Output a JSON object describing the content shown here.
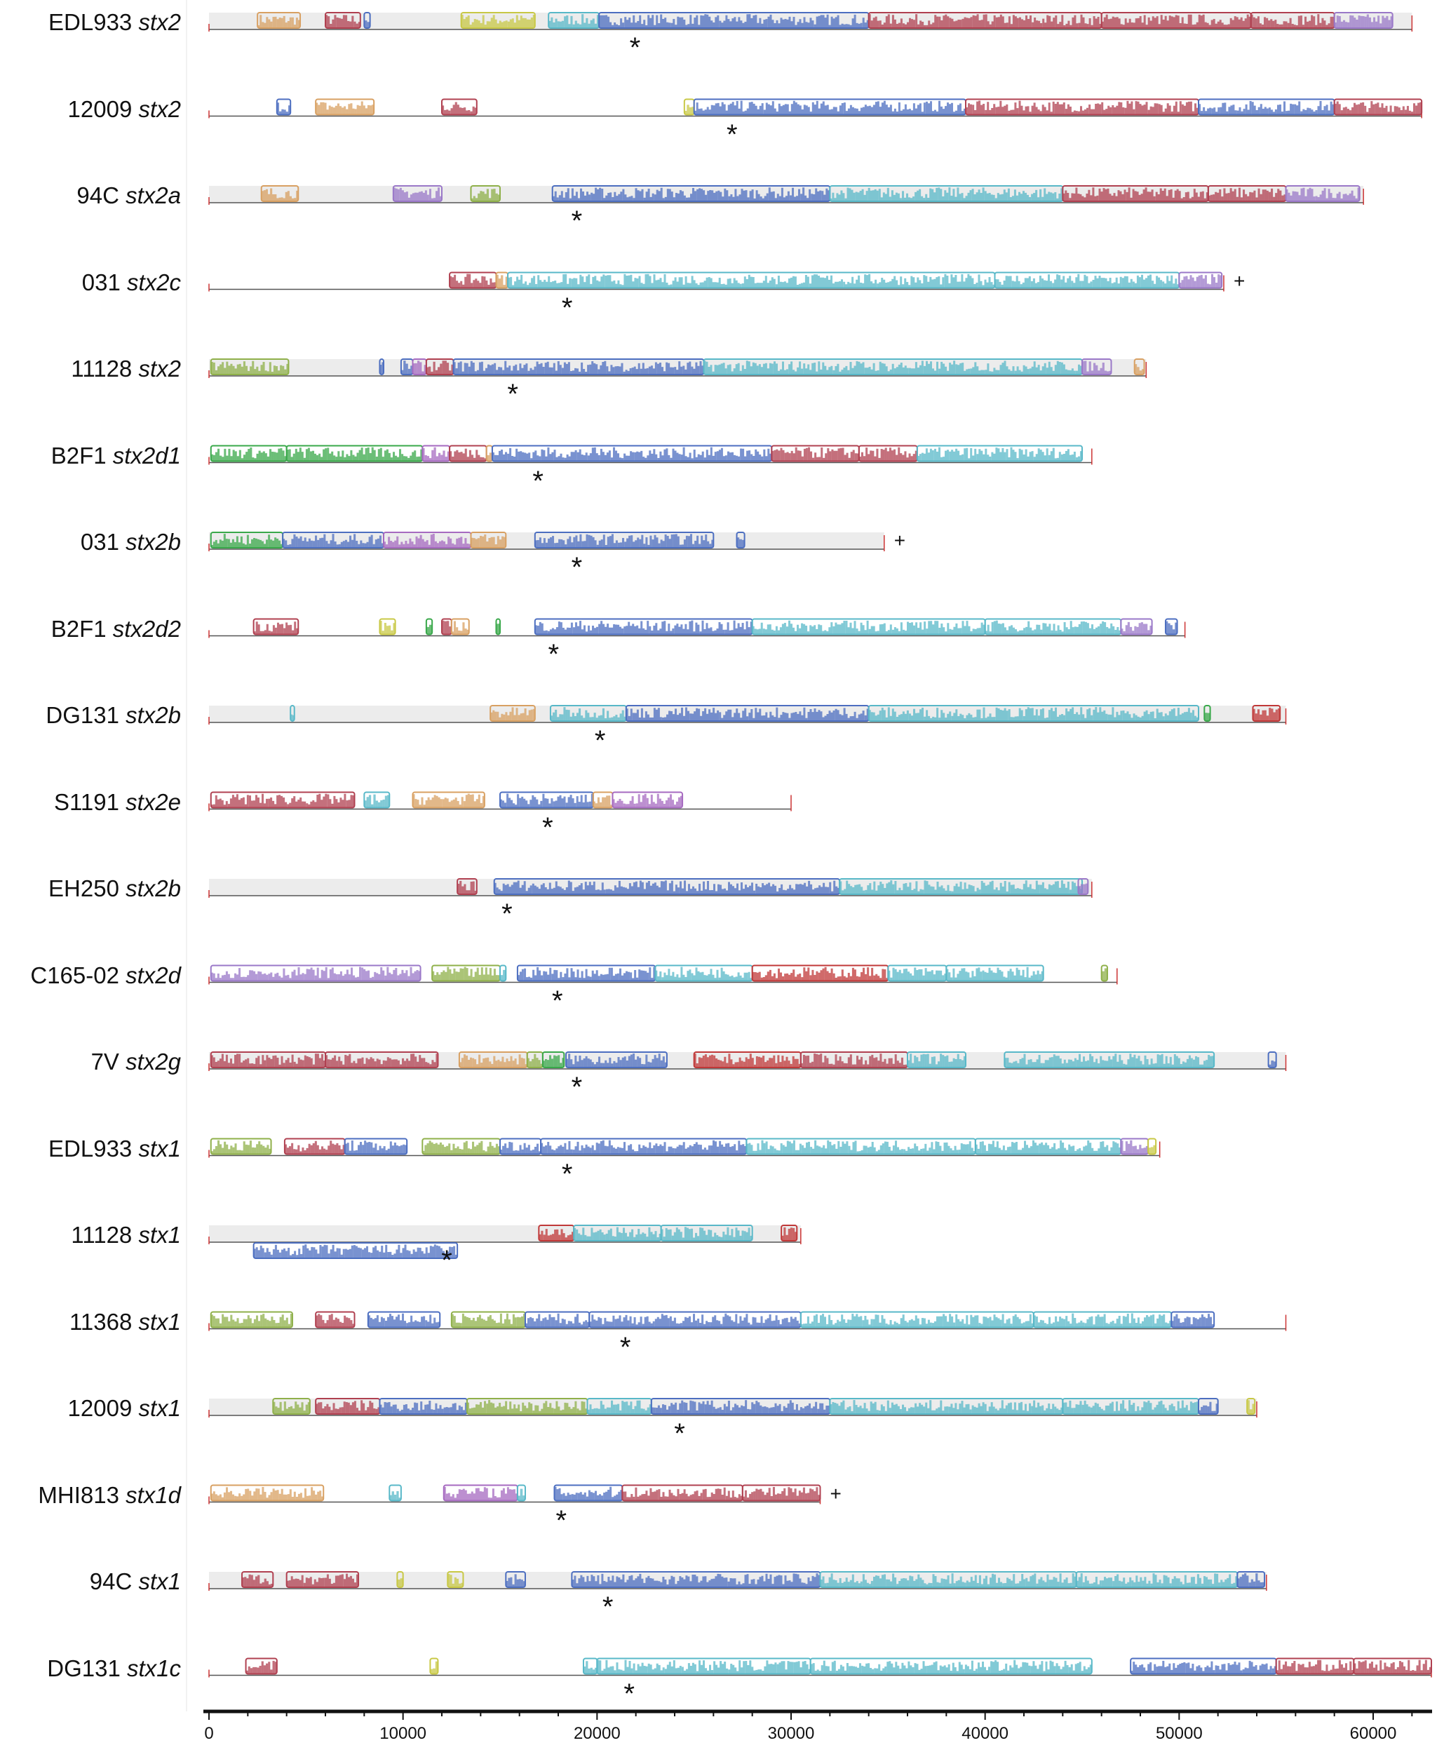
{
  "palette": [
    "#b04050",
    "#39a84a",
    "#9a78c8",
    "#88bde0",
    "#c8c845",
    "#d8a062",
    "#4c6ec0",
    "#e48a98",
    "#8fb04a",
    "#c03838",
    "#58b8c8",
    "#a66ac0"
  ],
  "axis": {
    "min": 0,
    "max": 63000,
    "ticks": [
      "0",
      "10000",
      "20000",
      "30000",
      "40000",
      "50000",
      "60000"
    ]
  },
  "rows": [
    {
      "strain": "EDL933",
      "gene": "stx2",
      "length": 62000,
      "shade": true,
      "star": 22000,
      "mark": "",
      "blocks": [
        {
          "s": 2500,
          "e": 4700,
          "c": 5
        },
        {
          "s": 6000,
          "e": 7800,
          "c": 0
        },
        {
          "s": 8000,
          "e": 8300,
          "c": 6
        },
        {
          "s": 13000,
          "e": 16800,
          "c": 4
        },
        {
          "s": 17500,
          "e": 20100,
          "c": 10
        },
        {
          "s": 20100,
          "e": 34000,
          "c": 6
        },
        {
          "s": 34000,
          "e": 46000,
          "c": 0
        },
        {
          "s": 46000,
          "e": 53700,
          "c": 0
        },
        {
          "s": 53700,
          "e": 58000,
          "c": 0
        },
        {
          "s": 58000,
          "e": 61000,
          "c": 2
        }
      ]
    },
    {
      "strain": "12009",
      "gene": "stx2",
      "length": 62500,
      "shade": false,
      "star": 27000,
      "mark": "",
      "blocks": [
        {
          "s": 3500,
          "e": 4200,
          "c": 6
        },
        {
          "s": 5500,
          "e": 8500,
          "c": 5
        },
        {
          "s": 12000,
          "e": 13800,
          "c": 0
        },
        {
          "s": 24500,
          "e": 25000,
          "c": 4
        },
        {
          "s": 25000,
          "e": 39000,
          "c": 6
        },
        {
          "s": 39000,
          "e": 51000,
          "c": 0
        },
        {
          "s": 51000,
          "e": 58000,
          "c": 6
        },
        {
          "s": 58000,
          "e": 62500,
          "c": 0
        }
      ]
    },
    {
      "strain": "94C",
      "gene": "stx2a",
      "length": 59500,
      "shade": true,
      "star": 19000,
      "mark": "",
      "blocks": [
        {
          "s": 2700,
          "e": 4600,
          "c": 5
        },
        {
          "s": 9500,
          "e": 12000,
          "c": 2
        },
        {
          "s": 13500,
          "e": 15000,
          "c": 8
        },
        {
          "s": 17700,
          "e": 32000,
          "c": 6
        },
        {
          "s": 32000,
          "e": 44000,
          "c": 10
        },
        {
          "s": 44000,
          "e": 51500,
          "c": 0
        },
        {
          "s": 51500,
          "e": 55500,
          "c": 0
        },
        {
          "s": 55500,
          "e": 59300,
          "c": 2
        }
      ]
    },
    {
      "strain": "031",
      "gene": "stx2c",
      "length": 52300,
      "shade": false,
      "star": 18500,
      "mark": "+",
      "blocks": [
        {
          "s": 12400,
          "e": 14800,
          "c": 0
        },
        {
          "s": 14800,
          "e": 15400,
          "c": 5
        },
        {
          "s": 15400,
          "e": 40500,
          "c": 10
        },
        {
          "s": 40500,
          "e": 50000,
          "c": 10
        },
        {
          "s": 50000,
          "e": 52200,
          "c": 2
        }
      ]
    },
    {
      "strain": "11128",
      "gene": "stx2",
      "length": 48300,
      "shade": true,
      "star": 15700,
      "mark": "",
      "blocks": [
        {
          "s": 100,
          "e": 4100,
          "c": 8
        },
        {
          "s": 8800,
          "e": 9000,
          "c": 6
        },
        {
          "s": 9900,
          "e": 10500,
          "c": 6
        },
        {
          "s": 10500,
          "e": 11200,
          "c": 11
        },
        {
          "s": 11200,
          "e": 12600,
          "c": 0
        },
        {
          "s": 12600,
          "e": 25500,
          "c": 6
        },
        {
          "s": 25500,
          "e": 45000,
          "c": 10
        },
        {
          "s": 45000,
          "e": 46500,
          "c": 2
        },
        {
          "s": 47700,
          "e": 48200,
          "c": 5
        }
      ]
    },
    {
      "strain": "B2F1",
      "gene": "stx2d1",
      "length": 45500,
      "shade": false,
      "star": 17000,
      "mark": "",
      "blocks": [
        {
          "s": 100,
          "e": 4000,
          "c": 1
        },
        {
          "s": 4000,
          "e": 11000,
          "c": 1
        },
        {
          "s": 11000,
          "e": 12400,
          "c": 11
        },
        {
          "s": 12400,
          "e": 14300,
          "c": 0
        },
        {
          "s": 14300,
          "e": 14600,
          "c": 5
        },
        {
          "s": 14600,
          "e": 29000,
          "c": 6
        },
        {
          "s": 29000,
          "e": 33500,
          "c": 0
        },
        {
          "s": 33500,
          "e": 36500,
          "c": 0
        },
        {
          "s": 36500,
          "e": 45000,
          "c": 10
        }
      ]
    },
    {
      "strain": "031",
      "gene": "stx2b",
      "length": 34800,
      "shade": true,
      "star": 19000,
      "mark": "+",
      "blocks": [
        {
          "s": 100,
          "e": 3800,
          "c": 1
        },
        {
          "s": 3800,
          "e": 9000,
          "c": 6
        },
        {
          "s": 9000,
          "e": 13500,
          "c": 11
        },
        {
          "s": 13500,
          "e": 15300,
          "c": 5
        },
        {
          "s": 16800,
          "e": 26000,
          "c": 6
        },
        {
          "s": 27200,
          "e": 27600,
          "c": 6
        }
      ]
    },
    {
      "strain": "B2F1",
      "gene": "stx2d2",
      "length": 50300,
      "shade": false,
      "star": 17800,
      "mark": "",
      "blocks": [
        {
          "s": 2300,
          "e": 4600,
          "c": 0
        },
        {
          "s": 8800,
          "e": 9600,
          "c": 4
        },
        {
          "s": 11200,
          "e": 11500,
          "c": 1
        },
        {
          "s": 12000,
          "e": 12500,
          "c": 0
        },
        {
          "s": 12500,
          "e": 13400,
          "c": 5
        },
        {
          "s": 14800,
          "e": 15000,
          "c": 1
        },
        {
          "s": 16800,
          "e": 28000,
          "c": 6
        },
        {
          "s": 28000,
          "e": 40000,
          "c": 10
        },
        {
          "s": 40000,
          "e": 47000,
          "c": 10
        },
        {
          "s": 47000,
          "e": 48600,
          "c": 2
        },
        {
          "s": 49300,
          "e": 49900,
          "c": 6
        }
      ]
    },
    {
      "strain": "DG131",
      "gene": "stx2b",
      "length": 55500,
      "shade": true,
      "star": 20200,
      "mark": "",
      "blocks": [
        {
          "s": 4200,
          "e": 4400,
          "c": 10
        },
        {
          "s": 14500,
          "e": 16800,
          "c": 5
        },
        {
          "s": 17600,
          "e": 21500,
          "c": 10
        },
        {
          "s": 21500,
          "e": 34000,
          "c": 6
        },
        {
          "s": 34000,
          "e": 51000,
          "c": 10
        },
        {
          "s": 51300,
          "e": 51600,
          "c": 1
        },
        {
          "s": 53800,
          "e": 55200,
          "c": 9
        }
      ]
    },
    {
      "strain": "S1191",
      "gene": "stx2e",
      "length": 30000,
      "shade": false,
      "star": 17500,
      "mark": "",
      "blocks": [
        {
          "s": 100,
          "e": 7500,
          "c": 0
        },
        {
          "s": 8000,
          "e": 9300,
          "c": 10
        },
        {
          "s": 10500,
          "e": 14200,
          "c": 5
        },
        {
          "s": 15000,
          "e": 19800,
          "c": 6
        },
        {
          "s": 19800,
          "e": 20800,
          "c": 5
        },
        {
          "s": 20800,
          "e": 24400,
          "c": 11
        }
      ]
    },
    {
      "strain": "EH250",
      "gene": "stx2b",
      "length": 45500,
      "shade": true,
      "star": 15400,
      "mark": "",
      "blocks": [
        {
          "s": 12800,
          "e": 13800,
          "c": 0
        },
        {
          "s": 14700,
          "e": 32500,
          "c": 6
        },
        {
          "s": 32500,
          "e": 45000,
          "c": 10
        },
        {
          "s": 44800,
          "e": 45300,
          "c": 2
        }
      ]
    },
    {
      "strain": "C165-02",
      "gene": "stx2d",
      "length": 46800,
      "shade": false,
      "star": 18000,
      "mark": "",
      "blocks": [
        {
          "s": 100,
          "e": 10900,
          "c": 2
        },
        {
          "s": 11500,
          "e": 15000,
          "c": 8
        },
        {
          "s": 15000,
          "e": 15300,
          "c": 10
        },
        {
          "s": 15900,
          "e": 23000,
          "c": 6
        },
        {
          "s": 23000,
          "e": 28000,
          "c": 10
        },
        {
          "s": 28000,
          "e": 35000,
          "c": 9
        },
        {
          "s": 35000,
          "e": 38000,
          "c": 10
        },
        {
          "s": 38000,
          "e": 43000,
          "c": 10
        },
        {
          "s": 46000,
          "e": 46300,
          "c": 8
        }
      ]
    },
    {
      "strain": "7V",
      "gene": "stx2g",
      "length": 55500,
      "shade": true,
      "star": 19000,
      "mark": "",
      "blocks": [
        {
          "s": 100,
          "e": 6000,
          "c": 0
        },
        {
          "s": 6000,
          "e": 11800,
          "c": 0
        },
        {
          "s": 12900,
          "e": 16400,
          "c": 5
        },
        {
          "s": 16400,
          "e": 17200,
          "c": 8
        },
        {
          "s": 17200,
          "e": 18300,
          "c": 1
        },
        {
          "s": 18400,
          "e": 23600,
          "c": 6
        },
        {
          "s": 25000,
          "e": 30500,
          "c": 9
        },
        {
          "s": 30500,
          "e": 36000,
          "c": 0
        },
        {
          "s": 36000,
          "e": 39000,
          "c": 10
        },
        {
          "s": 41000,
          "e": 51800,
          "c": 10
        },
        {
          "s": 54600,
          "e": 55000,
          "c": 6
        }
      ]
    },
    {
      "strain": "EDL933",
      "gene": "stx1",
      "length": 49000,
      "shade": false,
      "star": 18500,
      "mark": "",
      "blocks": [
        {
          "s": 100,
          "e": 3200,
          "c": 8
        },
        {
          "s": 3900,
          "e": 7000,
          "c": 0
        },
        {
          "s": 7000,
          "e": 10200,
          "c": 6
        },
        {
          "s": 11000,
          "e": 15000,
          "c": 8
        },
        {
          "s": 15000,
          "e": 17100,
          "c": 6
        },
        {
          "s": 17100,
          "e": 27700,
          "c": 6
        },
        {
          "s": 27700,
          "e": 39500,
          "c": 10
        },
        {
          "s": 39500,
          "e": 47000,
          "c": 10
        },
        {
          "s": 47000,
          "e": 48400,
          "c": 2
        },
        {
          "s": 48400,
          "e": 48800,
          "c": 4
        }
      ]
    },
    {
      "strain": "11128",
      "gene": "stx1",
      "length": 30500,
      "shade": true,
      "star": 12300,
      "mark": "",
      "blocks": [
        {
          "s": 17000,
          "e": 18800,
          "c": 9
        },
        {
          "s": 18800,
          "e": 23300,
          "c": 10
        },
        {
          "s": 23300,
          "e": 28000,
          "c": 10
        },
        {
          "s": 29500,
          "e": 30300,
          "c": 9
        }
      ],
      "lowblocks": [
        {
          "s": 2300,
          "e": 12800,
          "c": 6
        }
      ]
    },
    {
      "strain": "11368",
      "gene": "stx1",
      "length": 55500,
      "shade": false,
      "star": 21500,
      "mark": "",
      "blocks": [
        {
          "s": 100,
          "e": 4300,
          "c": 8
        },
        {
          "s": 5500,
          "e": 7500,
          "c": 0
        },
        {
          "s": 8200,
          "e": 11900,
          "c": 6
        },
        {
          "s": 12500,
          "e": 16300,
          "c": 8
        },
        {
          "s": 16300,
          "e": 19600,
          "c": 6
        },
        {
          "s": 19600,
          "e": 30500,
          "c": 6
        },
        {
          "s": 30500,
          "e": 42500,
          "c": 10
        },
        {
          "s": 42500,
          "e": 49600,
          "c": 10
        },
        {
          "s": 49600,
          "e": 51800,
          "c": 6
        }
      ]
    },
    {
      "strain": "12009",
      "gene": "stx1",
      "length": 54000,
      "shade": true,
      "star": 24300,
      "mark": "",
      "blocks": [
        {
          "s": 3300,
          "e": 5200,
          "c": 8
        },
        {
          "s": 5500,
          "e": 8800,
          "c": 0
        },
        {
          "s": 8800,
          "e": 13300,
          "c": 6
        },
        {
          "s": 13300,
          "e": 19500,
          "c": 8
        },
        {
          "s": 19500,
          "e": 22800,
          "c": 10
        },
        {
          "s": 22800,
          "e": 32000,
          "c": 6
        },
        {
          "s": 32000,
          "e": 44000,
          "c": 10
        },
        {
          "s": 44000,
          "e": 51000,
          "c": 10
        },
        {
          "s": 51000,
          "e": 52000,
          "c": 6
        },
        {
          "s": 53500,
          "e": 53900,
          "c": 4
        }
      ]
    },
    {
      "strain": "MHI813",
      "gene": "stx1d",
      "length": 31500,
      "shade": false,
      "star": 18200,
      "mark": "+",
      "blocks": [
        {
          "s": 100,
          "e": 5900,
          "c": 5
        },
        {
          "s": 9300,
          "e": 9900,
          "c": 10
        },
        {
          "s": 12100,
          "e": 15900,
          "c": 11
        },
        {
          "s": 15900,
          "e": 16300,
          "c": 10
        },
        {
          "s": 17800,
          "e": 21300,
          "c": 6
        },
        {
          "s": 21300,
          "e": 27500,
          "c": 0
        },
        {
          "s": 27500,
          "e": 31500,
          "c": 0
        }
      ]
    },
    {
      "strain": "94C",
      "gene": "stx1",
      "length": 54500,
      "shade": true,
      "star": 20600,
      "mark": "",
      "blocks": [
        {
          "s": 1700,
          "e": 3300,
          "c": 0
        },
        {
          "s": 4000,
          "e": 7700,
          "c": 0
        },
        {
          "s": 9700,
          "e": 10000,
          "c": 4
        },
        {
          "s": 12300,
          "e": 13100,
          "c": 4
        },
        {
          "s": 15300,
          "e": 16300,
          "c": 6
        },
        {
          "s": 18700,
          "e": 31500,
          "c": 6
        },
        {
          "s": 31500,
          "e": 44700,
          "c": 10
        },
        {
          "s": 44700,
          "e": 53000,
          "c": 10
        },
        {
          "s": 53000,
          "e": 54400,
          "c": 6
        }
      ]
    },
    {
      "strain": "DG131",
      "gene": "stx1c",
      "length": 63000,
      "shade": false,
      "star": 21700,
      "mark": "",
      "blocks": [
        {
          "s": 1900,
          "e": 3500,
          "c": 0
        },
        {
          "s": 11400,
          "e": 11800,
          "c": 4
        },
        {
          "s": 19300,
          "e": 20000,
          "c": 10
        },
        {
          "s": 20000,
          "e": 31000,
          "c": 10
        },
        {
          "s": 31000,
          "e": 45500,
          "c": 10
        },
        {
          "s": 47500,
          "e": 55000,
          "c": 6
        },
        {
          "s": 55000,
          "e": 59000,
          "c": 0
        },
        {
          "s": 59000,
          "e": 63000,
          "c": 0
        }
      ]
    }
  ]
}
